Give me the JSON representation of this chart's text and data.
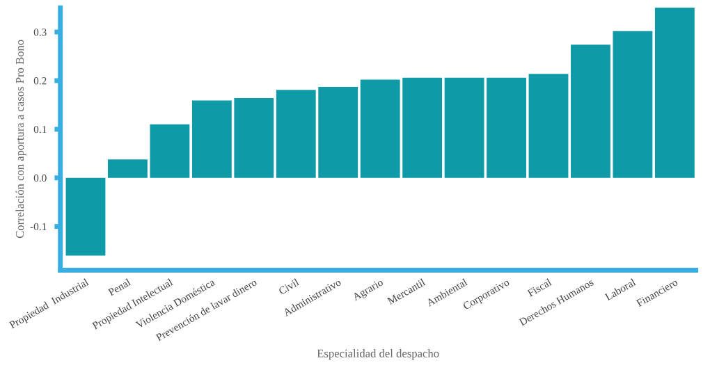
{
  "chart_data": {
    "type": "bar",
    "xlabel": "Especialidad del despacho",
    "ylabel": "Correlación con aportura a casos Pro Bono",
    "categories": [
      "Propiedad  Industrial",
      "Penal",
      "Propiedad Intelectual",
      "Violencia Doméstica",
      "Prevención de lavar dinero",
      "Civil",
      "Administrativo",
      "Agrario",
      "Mercantil",
      "Ambiental",
      "Corporativo",
      "Fiscal",
      "Derechos Humanos",
      "Laboral",
      "Financiero"
    ],
    "values": [
      -0.16,
      0.038,
      0.11,
      0.159,
      0.164,
      0.181,
      0.187,
      0.202,
      0.206,
      0.206,
      0.206,
      0.214,
      0.274,
      0.302,
      0.35
    ],
    "color": "#0e9aa7",
    "ylim": [
      -0.19,
      0.35
    ],
    "yticks": [
      -0.1,
      {
        "value": 0,
        "label": "0.0"
      },
      0.1,
      0.2,
      0.3
    ],
    "grid": false,
    "legend": false
  }
}
